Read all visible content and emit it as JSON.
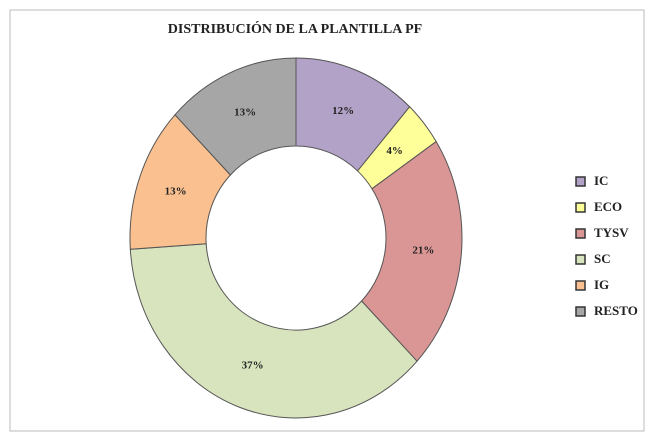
{
  "chart_data": {
    "type": "pie",
    "title": "DISTRIBUCIÓN DE LA PLANTILLA PF",
    "categories": [
      "IC",
      "ECO",
      "TYSV",
      "SC",
      "IG",
      "RESTO"
    ],
    "values": [
      12,
      4,
      21,
      37,
      13,
      13
    ],
    "value_labels": [
      "12%",
      "4%",
      "21%",
      "37%",
      "13%",
      "13%"
    ],
    "colors": [
      "#b3a2c7",
      "#ffff99",
      "#d99694",
      "#d7e4bd",
      "#fac090",
      "#a6a6a6"
    ],
    "donut": true,
    "legend": "right"
  }
}
